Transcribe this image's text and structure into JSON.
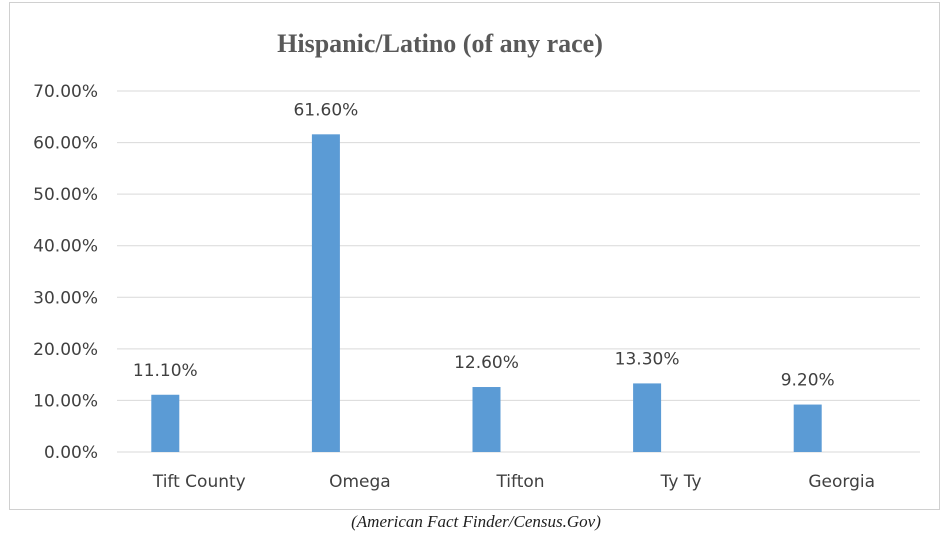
{
  "chart_data": {
    "type": "bar",
    "title": "Hispanic/Latino (of any race)",
    "xlabel": "",
    "ylabel": "",
    "categories": [
      "Tift County",
      "Omega",
      "Tifton",
      "Ty Ty",
      "Georgia"
    ],
    "values": [
      11.1,
      61.6,
      12.6,
      13.3,
      9.2
    ],
    "data_labels": [
      "11.10%",
      "61.60%",
      "12.60%",
      "13.30%",
      "9.20%"
    ],
    "ylim": [
      0,
      70
    ],
    "y_ticks": [
      0,
      10,
      20,
      30,
      40,
      50,
      60,
      70
    ],
    "y_tick_labels": [
      "0.00%",
      "10.00%",
      "20.00%",
      "30.00%",
      "40.00%",
      "50.00%",
      "60.00%",
      "70.00%"
    ],
    "grid": true,
    "legend": "none",
    "bar_color": "#5b9bd5"
  },
  "caption": "(American Fact Finder/Census.Gov)"
}
